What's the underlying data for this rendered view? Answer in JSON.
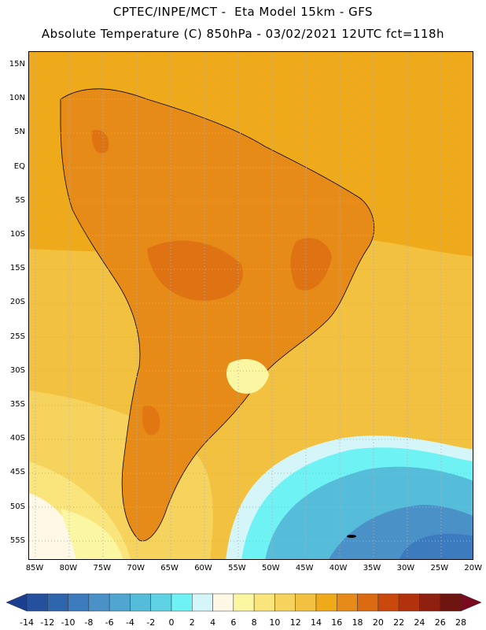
{
  "header": {
    "line1": "CPTEC/INPE/MCT -  Eta Model 15km - GFS",
    "line2": "Absolute Temperature (C) 850hPa - 03/02/2021 12UTC fct=118h"
  },
  "map": {
    "lat_labels": [
      "15N",
      "10N",
      "5N",
      "EQ",
      "5S",
      "10S",
      "15S",
      "20S",
      "25S",
      "30S",
      "35S",
      "40S",
      "45S",
      "50S",
      "55S"
    ],
    "lon_labels": [
      "85W",
      "80W",
      "75W",
      "70W",
      "65W",
      "60W",
      "55W",
      "50W",
      "45W",
      "40W",
      "35W",
      "30W",
      "25W",
      "20W"
    ]
  },
  "colorbar": {
    "labels": [
      "-14",
      "-12",
      "-10",
      "-8",
      "-6",
      "-4",
      "-2",
      "0",
      "2",
      "4",
      "6",
      "8",
      "10",
      "12",
      "14",
      "16",
      "18",
      "20",
      "22",
      "24",
      "26",
      "28"
    ],
    "colors": [
      "#1b3f8f",
      "#24509e",
      "#2f65ad",
      "#3c7bbd",
      "#4a91c8",
      "#4fa6d1",
      "#55bcd9",
      "#5fd2e4",
      "#6ef2f4",
      "#d4f6f9",
      "#fff8e6",
      "#fbf6a2",
      "#f9e57c",
      "#f6d35d",
      "#f2c13f",
      "#eeaa1a",
      "#e68b18",
      "#dc6a10",
      "#c9490c",
      "#b2320d",
      "#8f2010",
      "#6f1510",
      "#7a0b1e"
    ]
  }
}
